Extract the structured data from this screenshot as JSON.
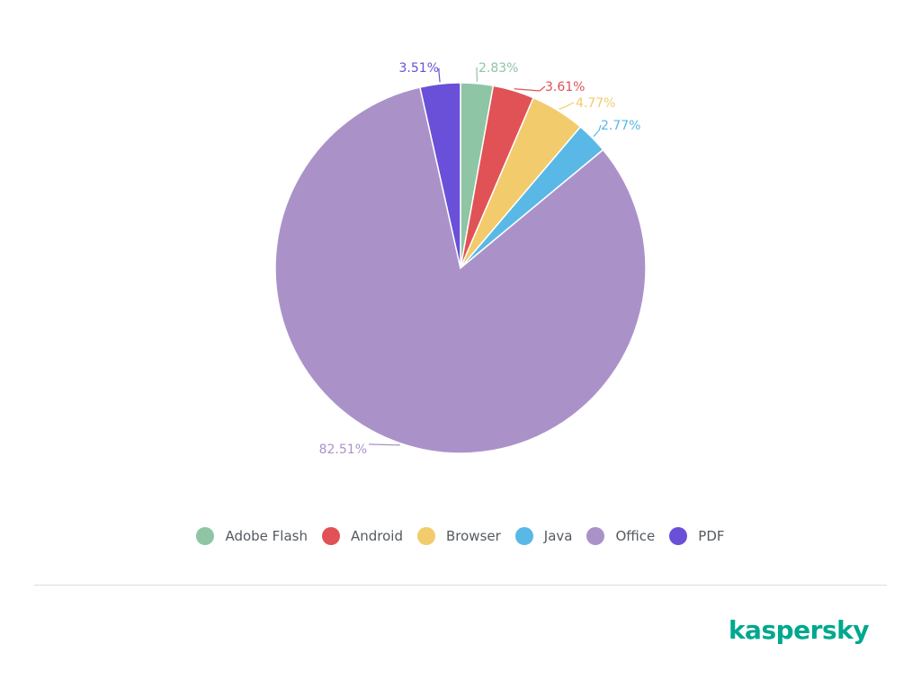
{
  "chart_data": {
    "type": "pie",
    "title": "",
    "slices": [
      {
        "label": "Adobe Flash",
        "value": 2.83,
        "display": "2.83%",
        "color": "#8ec5a4"
      },
      {
        "label": "Android",
        "value": 3.61,
        "display": "3.61%",
        "color": "#e05256"
      },
      {
        "label": "Browser",
        "value": 4.77,
        "display": "4.77%",
        "color": "#f2cb6c"
      },
      {
        "label": "Java",
        "value": 2.77,
        "display": "2.77%",
        "color": "#5ab8e6"
      },
      {
        "label": "Office",
        "value": 82.51,
        "display": "82.51%",
        "color": "#aa92c9"
      },
      {
        "label": "PDF",
        "value": 3.51,
        "display": "3.51%",
        "color": "#6a50d8"
      }
    ],
    "legend_position": "bottom-center"
  },
  "legend": {
    "items": [
      {
        "label": "Adobe Flash",
        "color": "#8ec5a4"
      },
      {
        "label": "Android",
        "color": "#e05256"
      },
      {
        "label": "Browser",
        "color": "#f2cb6c"
      },
      {
        "label": "Java",
        "color": "#5ab8e6"
      },
      {
        "label": "Office",
        "color": "#aa92c9"
      },
      {
        "label": "PDF",
        "color": "#6a50d8"
      }
    ]
  },
  "brand": {
    "logo_text": "kaspersky",
    "color": "#00a88e"
  }
}
